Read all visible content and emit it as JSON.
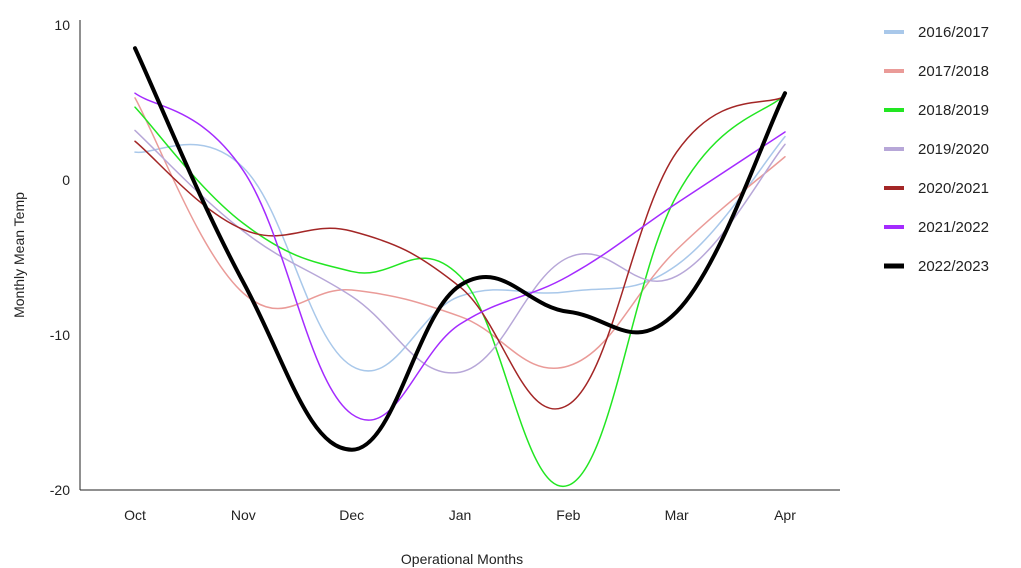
{
  "chart_data": {
    "type": "line",
    "title": "",
    "xlabel": "Operational Months",
    "ylabel": "Monthly Mean Temp",
    "categories": [
      "Oct",
      "Nov",
      "Dec",
      "Jan",
      "Feb",
      "Mar",
      "Apr"
    ],
    "ylim": [
      -20,
      10
    ],
    "yticks": [
      10,
      0,
      -10,
      -20
    ],
    "grid": false,
    "legend_position": "right",
    "series": [
      {
        "name": "2016/2017",
        "color": "#a9c8ea",
        "values": [
          1.8,
          0.8,
          -12.0,
          -7.5,
          -7.2,
          -5.5,
          2.8
        ]
      },
      {
        "name": "2017/2018",
        "color": "#ea9b98",
        "values": [
          5.3,
          -7.3,
          -7.1,
          -8.8,
          -12.0,
          -4.5,
          1.5
        ]
      },
      {
        "name": "2018/2019",
        "color": "#22e622",
        "values": [
          4.7,
          -2.8,
          -5.9,
          -6.2,
          -19.7,
          -1.0,
          5.5
        ]
      },
      {
        "name": "2019/2020",
        "color": "#b7a7d8",
        "values": [
          3.2,
          -3.3,
          -7.5,
          -12.4,
          -5.0,
          -6.2,
          2.3
        ]
      },
      {
        "name": "2020/2021",
        "color": "#a32626",
        "values": [
          2.5,
          -3.2,
          -3.3,
          -6.9,
          -14.5,
          1.8,
          5.4
        ]
      },
      {
        "name": "2021/2022",
        "color": "#a42bff",
        "values": [
          5.6,
          0.6,
          -15.1,
          -9.3,
          -6.2,
          -1.5,
          3.1
        ]
      },
      {
        "name": "2022/2023",
        "color": "#000000",
        "values": [
          8.5,
          -6.6,
          -17.4,
          -6.8,
          -8.5,
          -8.5,
          5.6
        ]
      }
    ]
  }
}
